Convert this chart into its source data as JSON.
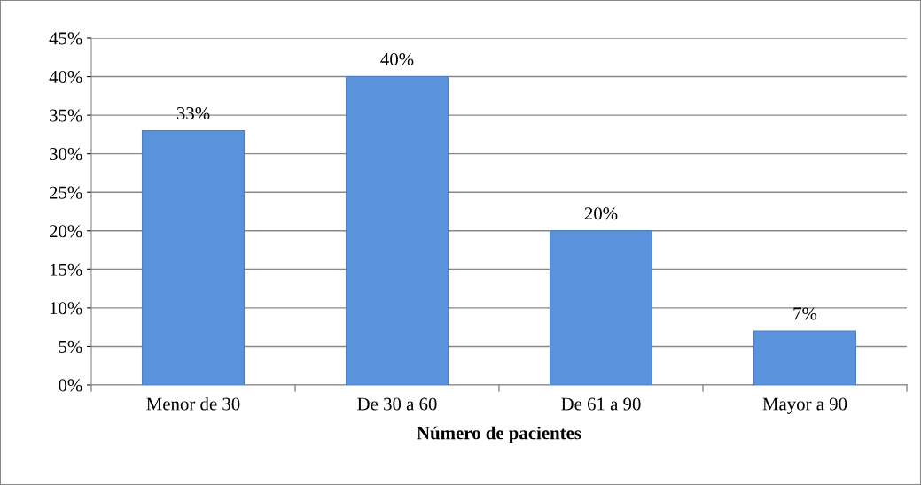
{
  "chart_data": {
    "type": "bar",
    "xlabel": "Número de pacientes",
    "categories": [
      "Menor de 30",
      "De 30 a 60",
      "De 61 a 90",
      "Mayor a 90"
    ],
    "values": [
      33,
      40,
      20,
      7
    ],
    "color": "#5b92dc",
    "value_labels": [
      "33%",
      "40%",
      "20%",
      "7%"
    ],
    "ylim": [
      0,
      45
    ],
    "yticks": [
      {
        "value": 0,
        "label": "0%"
      },
      {
        "value": 5,
        "label": "5%"
      },
      {
        "value": 10,
        "label": "10%"
      },
      {
        "value": 15,
        "label": "15%"
      },
      {
        "value": 20,
        "label": "20%"
      },
      {
        "value": 25,
        "label": "25%"
      },
      {
        "value": 30,
        "label": "30%"
      },
      {
        "value": 35,
        "label": "35%"
      },
      {
        "value": 40,
        "label": "40%"
      },
      {
        "value": 45,
        "label": "45%"
      }
    ],
    "grid": "y",
    "legend": false
  }
}
